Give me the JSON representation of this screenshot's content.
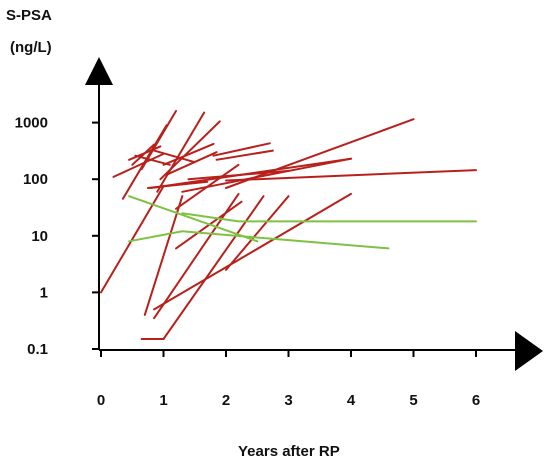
{
  "chart_data": {
    "type": "line",
    "title": "",
    "ylabel": "S-PSA",
    "ylabel_unit": "(ng/L)",
    "xlabel": "Years after RP",
    "y_scale": "log",
    "ylim": [
      0.1,
      1500
    ],
    "xlim": [
      0,
      6
    ],
    "y_ticks": [
      {
        "label": "0.1",
        "value": 0.1
      },
      {
        "label": "1",
        "value": 1
      },
      {
        "label": "10",
        "value": 10
      },
      {
        "label": "100",
        "value": 100
      },
      {
        "label": "1000",
        "value": 1000
      }
    ],
    "x_ticks": [
      {
        "label": "0",
        "value": 0
      },
      {
        "label": "1",
        "value": 1
      },
      {
        "label": "2",
        "value": 2
      },
      {
        "label": "3",
        "value": 3
      },
      {
        "label": "4",
        "value": 4
      },
      {
        "label": "5",
        "value": 5
      },
      {
        "label": "6",
        "value": 6
      }
    ],
    "grid": false,
    "legend": "none",
    "colors": {
      "red": "#b8211b",
      "green": "#7dc242",
      "axis": "#000000"
    },
    "series": [
      {
        "color": "red",
        "points": [
          [
            0.0,
            1
          ],
          [
            1.0,
            75
          ]
        ]
      },
      {
        "color": "red",
        "points": [
          [
            0.2,
            110
          ],
          [
            1.0,
            280
          ]
        ]
      },
      {
        "color": "red",
        "points": [
          [
            0.35,
            45
          ],
          [
            1.05,
            900
          ]
        ]
      },
      {
        "color": "red",
        "points": [
          [
            0.45,
            220
          ],
          [
            0.95,
            380
          ]
        ]
      },
      {
        "color": "red",
        "points": [
          [
            0.5,
            180
          ],
          [
            0.85,
            410
          ]
        ]
      },
      {
        "color": "red",
        "points": [
          [
            0.55,
            260
          ],
          [
            1.1,
            180
          ]
        ]
      },
      {
        "color": "red",
        "points": [
          [
            0.65,
            150
          ],
          [
            1.2,
            1600
          ]
        ]
      },
      {
        "color": "red",
        "points": [
          [
            0.7,
            0.4
          ],
          [
            1.3,
            50
          ]
        ]
      },
      {
        "color": "red",
        "points": [
          [
            0.75,
            70
          ],
          [
            1.7,
            90
          ]
        ]
      },
      {
        "color": "red",
        "points": [
          [
            0.8,
            70
          ],
          [
            4.0,
            230
          ]
        ]
      },
      {
        "color": "red",
        "points": [
          [
            0.85,
            320
          ],
          [
            1.5,
            200
          ]
        ]
      },
      {
        "color": "red",
        "points": [
          [
            0.9,
            60
          ],
          [
            1.65,
            1500
          ]
        ]
      },
      {
        "color": "red",
        "points": [
          [
            0.95,
            100
          ],
          [
            1.9,
            1050
          ]
        ]
      },
      {
        "color": "red",
        "points": [
          [
            1.0,
            180
          ],
          [
            1.8,
            420
          ]
        ]
      },
      {
        "color": "red",
        "points": [
          [
            1.05,
            120
          ],
          [
            1.85,
            300
          ]
        ]
      },
      {
        "color": "red",
        "points": [
          [
            0.65,
            0.15
          ],
          [
            1.0,
            0.15
          ]
        ]
      },
      {
        "color": "red",
        "points": [
          [
            1.0,
            0.15
          ],
          [
            2.6,
            50
          ]
        ]
      },
      {
        "color": "red",
        "points": [
          [
            0.85,
            0.5
          ],
          [
            4.0,
            55
          ]
        ]
      },
      {
        "color": "red",
        "points": [
          [
            0.85,
            0.35
          ],
          [
            2.2,
            55
          ]
        ]
      },
      {
        "color": "red",
        "points": [
          [
            1.2,
            30
          ],
          [
            2.2,
            180
          ]
        ]
      },
      {
        "color": "red",
        "points": [
          [
            1.2,
            6
          ],
          [
            2.25,
            40
          ]
        ]
      },
      {
        "color": "red",
        "points": [
          [
            1.4,
            100
          ],
          [
            3.0,
            140
          ]
        ]
      },
      {
        "color": "red",
        "points": [
          [
            1.8,
            260
          ],
          [
            2.7,
            430
          ]
        ]
      },
      {
        "color": "red",
        "points": [
          [
            1.85,
            220
          ],
          [
            2.75,
            320
          ]
        ]
      },
      {
        "color": "red",
        "points": [
          [
            2.0,
            70
          ],
          [
            5.0,
            1150
          ]
        ]
      },
      {
        "color": "red",
        "points": [
          [
            2.0,
            95
          ],
          [
            6.0,
            145
          ]
        ]
      },
      {
        "color": "red",
        "points": [
          [
            1.3,
            60
          ],
          [
            4.0,
            230
          ]
        ]
      },
      {
        "color": "red",
        "points": [
          [
            2.0,
            2.5
          ],
          [
            3.0,
            50
          ]
        ]
      },
      {
        "color": "green",
        "points": [
          [
            0.45,
            50
          ],
          [
            2.5,
            8
          ]
        ]
      },
      {
        "color": "green",
        "points": [
          [
            0.45,
            8
          ],
          [
            1.3,
            12
          ],
          [
            4.6,
            6
          ]
        ]
      },
      {
        "color": "green",
        "points": [
          [
            1.3,
            25
          ],
          [
            2.2,
            18
          ],
          [
            6.0,
            18
          ]
        ]
      }
    ]
  }
}
